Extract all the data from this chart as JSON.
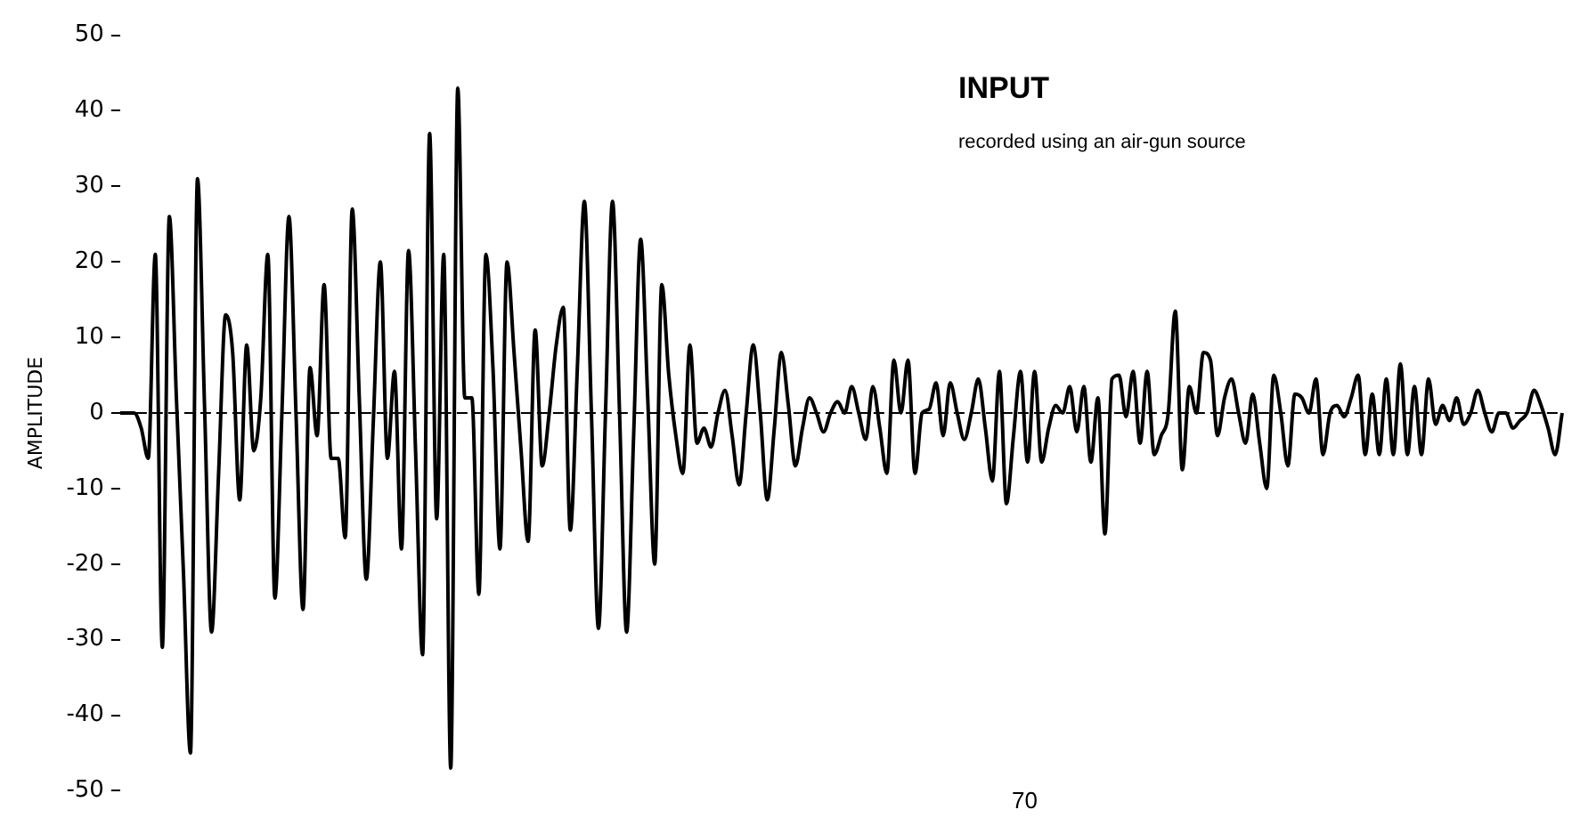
{
  "chart_data": {
    "type": "line",
    "title": "INPUT",
    "subtitle": "recorded using an air-gun source",
    "ylabel": "AMPLITUDE",
    "categories": [
      null,
      null,
      null,
      null,
      null,
      null,
      null,
      null,
      null,
      null,
      null,
      null,
      null,
      null,
      null,
      null,
      null,
      null,
      null,
      null,
      null,
      null,
      null,
      null,
      null,
      null,
      null,
      null,
      null,
      null,
      null,
      null,
      null,
      null,
      null,
      null,
      null,
      null,
      null,
      null,
      null,
      null,
      null,
      null,
      null,
      null,
      null,
      null,
      null,
      null,
      null,
      null,
      null,
      null,
      null,
      null,
      null,
      null,
      null,
      null,
      null,
      null,
      null,
      null,
      null,
      null,
      null,
      null,
      null,
      null,
      null,
      null,
      null,
      null,
      null,
      null,
      null,
      null,
      null,
      null,
      null,
      null,
      null,
      null,
      null,
      null,
      null,
      null,
      null,
      null,
      null,
      null,
      null,
      null,
      null,
      null,
      null,
      null,
      null,
      null,
      null,
      null,
      null,
      null,
      null,
      null,
      null,
      null,
      null,
      null,
      null,
      null,
      null,
      null,
      null,
      null,
      null,
      null,
      null,
      null,
      null,
      null,
      null,
      null,
      null,
      null,
      null,
      null,
      null,
      null,
      null,
      null,
      null,
      null,
      null,
      null,
      null,
      null,
      null,
      null,
      null,
      null,
      null,
      null,
      null,
      null,
      null,
      null,
      null,
      null,
      null,
      null,
      null,
      null,
      null,
      null,
      null,
      null,
      null,
      null,
      null,
      null,
      null,
      null,
      null,
      null,
      null,
      null,
      null,
      null,
      null,
      null,
      null,
      null,
      null,
      null,
      null,
      null,
      null,
      null,
      null,
      null,
      null,
      null,
      null,
      null,
      null,
      null,
      null,
      null,
      null,
      null,
      null,
      null,
      null,
      null,
      null,
      null,
      null,
      null,
      null,
      null,
      null,
      null,
      null,
      null
    ],
    "values": [
      0,
      0,
      0,
      -2,
      -6,
      21,
      -31,
      26,
      2,
      -21,
      -45,
      31,
      1,
      -29,
      -8,
      13,
      8,
      -11.5,
      9,
      -5,
      2,
      21,
      -24.5,
      0,
      26,
      0,
      -26,
      6,
      -3,
      17,
      -6,
      -6,
      -16.5,
      27,
      2,
      -22,
      -1,
      20,
      -6,
      5.5,
      -18,
      21.5,
      -5,
      -32,
      37,
      -14,
      21,
      -47,
      43,
      2,
      2,
      -24,
      21,
      6,
      -18,
      20,
      8,
      -5,
      -17,
      11,
      -7,
      0,
      9,
      14,
      -15.5,
      6,
      28,
      0,
      -28.5,
      0,
      28,
      0,
      -29,
      -3,
      23,
      2,
      -20,
      17,
      5,
      -3,
      -8,
      9,
      -4,
      -2,
      -4.5,
      0,
      3,
      -3,
      -9.5,
      0,
      9,
      0,
      -11.5,
      -2,
      8,
      1,
      -7,
      -2,
      2,
      0,
      -2.5,
      0,
      1.5,
      0,
      3.5,
      0,
      -3.5,
      3.5,
      -2,
      -8,
      7,
      0,
      7,
      -8,
      0,
      0.5,
      4,
      -3,
      4,
      0,
      -3.5,
      0,
      4.5,
      -2,
      -9,
      5.5,
      -12,
      -3,
      5.5,
      -6.5,
      5.5,
      -6.5,
      -2,
      1,
      0,
      3.5,
      -2.5,
      3.5,
      -6.5,
      2,
      -16,
      4.5,
      5,
      -0.5,
      5.5,
      -4,
      5.5,
      -5.5,
      -3,
      0,
      13.5,
      -7.5,
      3.5,
      0,
      8,
      7,
      -3,
      2,
      4.5,
      0,
      -4,
      2.5,
      -4,
      -10,
      5,
      0,
      -7,
      2.5,
      2,
      0,
      4.5,
      -5.5,
      0,
      1,
      -0.5,
      2,
      5,
      -5.5,
      2.5,
      -5.5,
      4.5,
      -5.5,
      6.5,
      -5.5,
      3.5,
      -5.5,
      4.5,
      -1.5,
      1,
      -1,
      2,
      -1.5,
      0,
      3,
      0,
      -2.5,
      0,
      0,
      -2,
      -1,
      0,
      3,
      1,
      -2,
      -5.5,
      0
    ],
    "color": "#000000",
    "ylim": [
      -50,
      50
    ],
    "yticks": [
      -50,
      -40,
      -30,
      -20,
      -10,
      0,
      10,
      20,
      30,
      40,
      50
    ],
    "ref_lines": [
      {
        "axis": "y",
        "value": 0,
        "line_style": "dashed",
        "color": "#000000"
      }
    ],
    "annotations": [
      "70"
    ]
  }
}
